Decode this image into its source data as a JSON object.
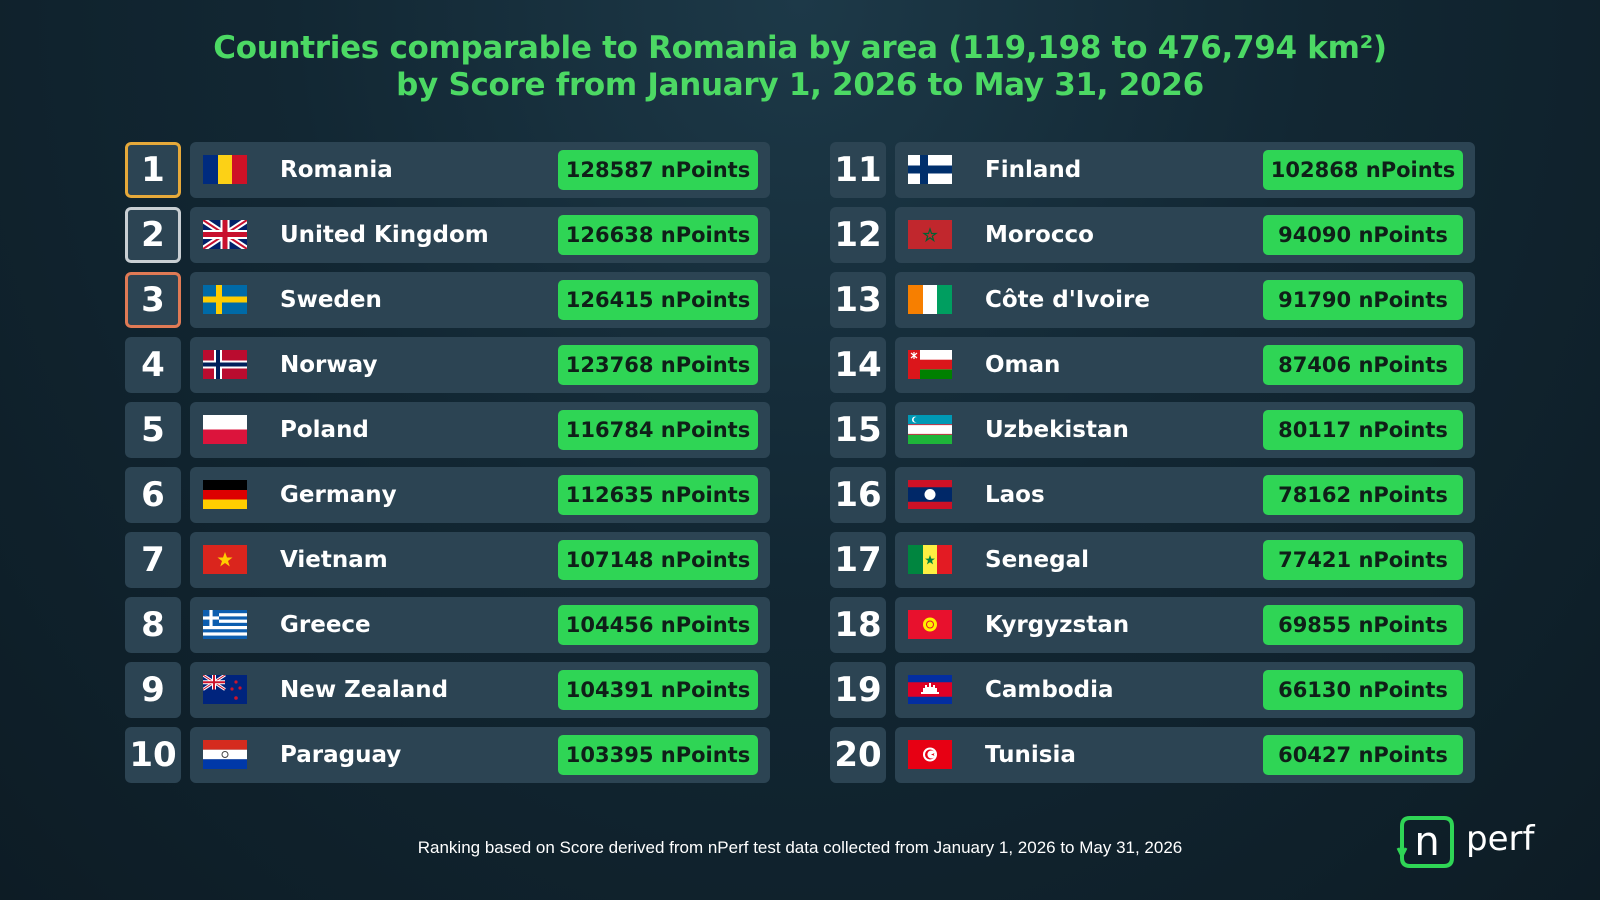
{
  "chart_data": {
    "type": "table",
    "title_line1": "Countries comparable to Romania by area (119,198 to 476,794 km²)",
    "title_line2": "by Score from January 1, 2026 to May 31, 2026",
    "unit": "nPoints",
    "rows": [
      {
        "rank": "1",
        "country": "Romania",
        "flag": "romania-flag",
        "score": 128587,
        "score_label": "128587 nPoints"
      },
      {
        "rank": "2",
        "country": "United Kingdom",
        "flag": "united-kingdom-flag",
        "score": 126638,
        "score_label": "126638 nPoints"
      },
      {
        "rank": "3",
        "country": "Sweden",
        "flag": "sweden-flag",
        "score": 126415,
        "score_label": "126415 nPoints"
      },
      {
        "rank": "4",
        "country": "Norway",
        "flag": "norway-flag",
        "score": 123768,
        "score_label": "123768 nPoints"
      },
      {
        "rank": "5",
        "country": "Poland",
        "flag": "poland-flag",
        "score": 116784,
        "score_label": "116784 nPoints"
      },
      {
        "rank": "6",
        "country": "Germany",
        "flag": "germany-flag",
        "score": 112635,
        "score_label": "112635 nPoints"
      },
      {
        "rank": "7",
        "country": "Vietnam",
        "flag": "vietnam-flag",
        "score": 107148,
        "score_label": "107148 nPoints"
      },
      {
        "rank": "8",
        "country": "Greece",
        "flag": "greece-flag",
        "score": 104456,
        "score_label": "104456 nPoints"
      },
      {
        "rank": "9",
        "country": "New Zealand",
        "flag": "new-zealand-flag",
        "score": 104391,
        "score_label": "104391 nPoints"
      },
      {
        "rank": "10",
        "country": "Paraguay",
        "flag": "paraguay-flag",
        "score": 103395,
        "score_label": "103395 nPoints"
      },
      {
        "rank": "11",
        "country": "Finland",
        "flag": "finland-flag",
        "score": 102868,
        "score_label": "102868 nPoints"
      },
      {
        "rank": "12",
        "country": "Morocco",
        "flag": "morocco-flag",
        "score": 94090,
        "score_label": "94090 nPoints"
      },
      {
        "rank": "13",
        "country": "Côte d'Ivoire",
        "flag": "cote-divoire-flag",
        "score": 91790,
        "score_label": "91790 nPoints"
      },
      {
        "rank": "14",
        "country": "Oman",
        "flag": "oman-flag",
        "score": 87406,
        "score_label": "87406 nPoints"
      },
      {
        "rank": "15",
        "country": "Uzbekistan",
        "flag": "uzbekistan-flag",
        "score": 80117,
        "score_label": "80117 nPoints"
      },
      {
        "rank": "16",
        "country": "Laos",
        "flag": "laos-flag",
        "score": 78162,
        "score_label": "78162 nPoints"
      },
      {
        "rank": "17",
        "country": "Senegal",
        "flag": "senegal-flag",
        "score": 77421,
        "score_label": "77421 nPoints"
      },
      {
        "rank": "18",
        "country": "Kyrgyzstan",
        "flag": "kyrgyzstan-flag",
        "score": 69855,
        "score_label": "69855 nPoints"
      },
      {
        "rank": "19",
        "country": "Cambodia",
        "flag": "cambodia-flag",
        "score": 66130,
        "score_label": "66130 nPoints"
      },
      {
        "rank": "20",
        "country": "Tunisia",
        "flag": "tunisia-flag",
        "score": 60427,
        "score_label": "60427 nPoints"
      }
    ]
  },
  "footer": {
    "text": "Ranking based on Score derived from nPerf test data collected from January 1, 2026 to May 31, 2026"
  },
  "logo": {
    "text_n": "n",
    "text_rest": "perf"
  },
  "colors": {
    "title": "#4cd964",
    "score_bg": "#2fd555",
    "row_bg": "#2c4453",
    "gold": "#e6a93a",
    "silver": "#c9cfd3",
    "bronze": "#e07a55"
  }
}
